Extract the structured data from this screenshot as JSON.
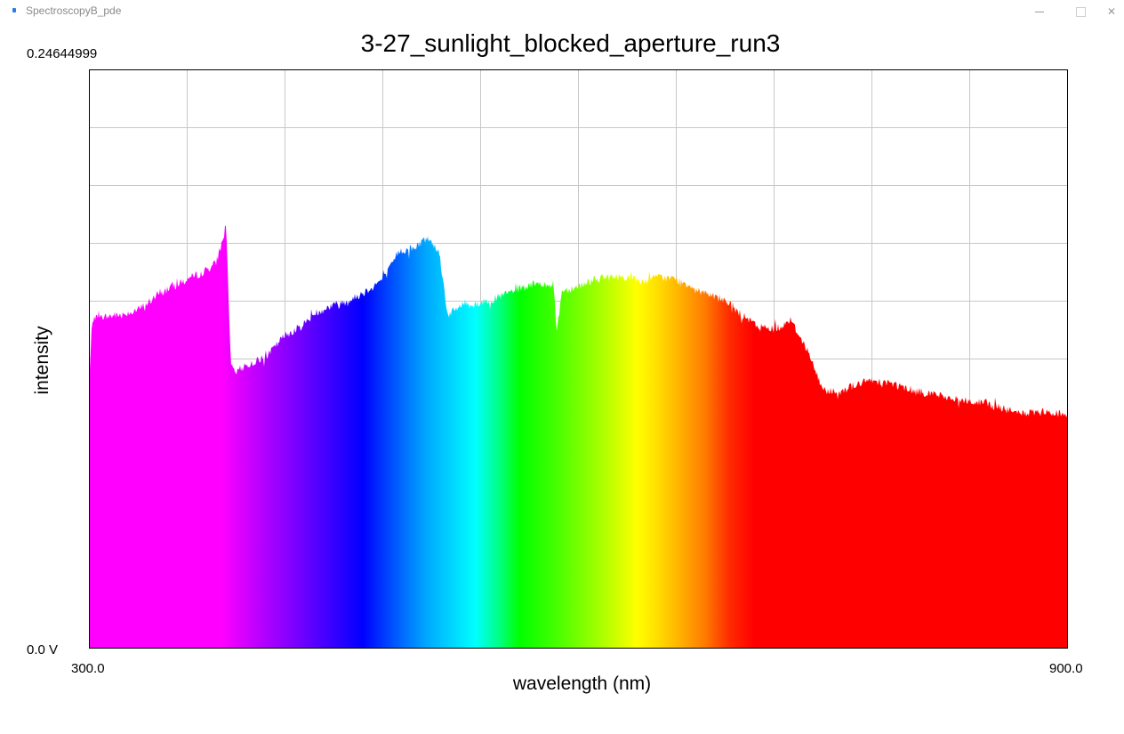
{
  "window": {
    "title": "SpectroscopyB_pde",
    "controls": {
      "minimize": "",
      "maximize": "",
      "close": "✕"
    }
  },
  "colors": {
    "background": "#ffffff",
    "grid": "#c8c8c8",
    "frame": "#000000",
    "spectrum": "rainbow gradient (magenta → violet → blue → cyan → green → yellow → orange → red)"
  },
  "chart_data": {
    "type": "area",
    "title": "3-27_sunlight_blocked_aperture_run3",
    "xlabel": "wavelength (nm)",
    "ylabel": "intensity",
    "x_min_label": "300.0",
    "x_max_label": "900.0",
    "y_max_label": "0.24644999",
    "y_min_label": "0.0 V",
    "xlim": [
      300,
      900
    ],
    "ylim": [
      0,
      0.24644999
    ],
    "grid": true,
    "x_gridlines": 10,
    "y_gridlines": 10,
    "fill": "spectral color by wavelength",
    "series": [
      {
        "x": [
          300,
          302,
          310,
          320,
          330,
          340,
          345,
          350,
          355,
          360,
          370,
          378,
          382,
          384,
          385,
          387,
          390,
          395,
          400,
          410,
          420,
          430,
          440,
          450,
          460,
          470,
          480,
          485,
          490,
          500,
          505,
          510,
          515,
          520,
          525,
          530,
          535,
          540,
          545,
          550,
          560,
          570,
          575,
          580,
          585,
          587,
          590,
          600,
          610,
          620,
          630,
          640,
          650,
          660,
          670,
          680,
          690,
          700,
          710,
          720,
          725,
          730,
          740,
          750,
          760,
          770,
          780,
          790,
          800,
          810,
          820,
          830,
          840,
          850,
          860,
          870,
          880,
          890,
          900
        ],
        "y": [
          0.11,
          0.14,
          0.141,
          0.142,
          0.144,
          0.149,
          0.151,
          0.154,
          0.155,
          0.157,
          0.16,
          0.164,
          0.174,
          0.18,
          0.165,
          0.12,
          0.117,
          0.12,
          0.121,
          0.125,
          0.133,
          0.137,
          0.143,
          0.146,
          0.148,
          0.152,
          0.157,
          0.162,
          0.169,
          0.17,
          0.174,
          0.174,
          0.168,
          0.142,
          0.144,
          0.147,
          0.146,
          0.147,
          0.148,
          0.149,
          0.152,
          0.154,
          0.155,
          0.155,
          0.155,
          0.134,
          0.152,
          0.154,
          0.157,
          0.158,
          0.158,
          0.156,
          0.158,
          0.157,
          0.154,
          0.151,
          0.148,
          0.142,
          0.137,
          0.136,
          0.137,
          0.14,
          0.128,
          0.11,
          0.109,
          0.112,
          0.114,
          0.113,
          0.111,
          0.109,
          0.108,
          0.106,
          0.105,
          0.104,
          0.102,
          0.1,
          0.1,
          0.1,
          0.1
        ]
      }
    ]
  }
}
